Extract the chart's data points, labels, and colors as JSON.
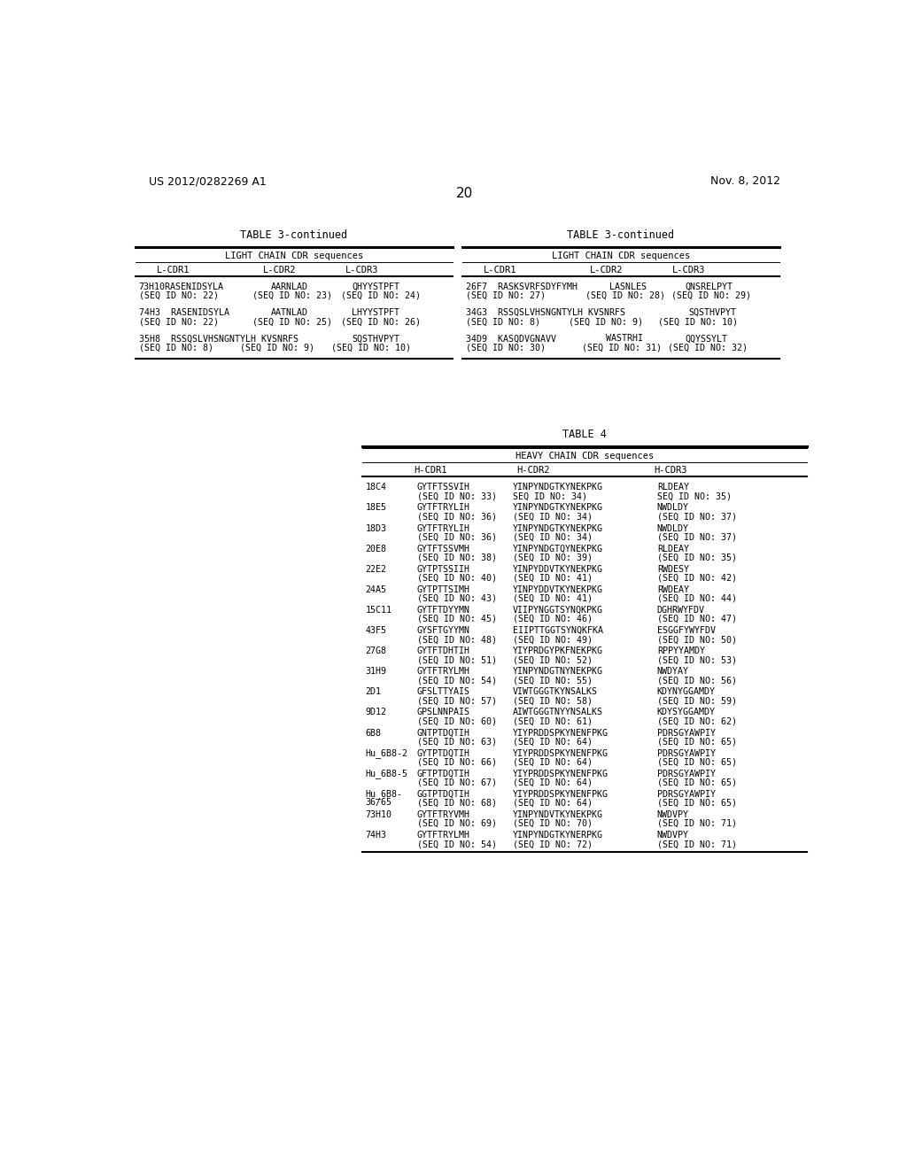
{
  "header_left": "US 2012/0282269 A1",
  "header_right": "Nov. 8, 2012",
  "page_number": "20",
  "background_color": "#ffffff",
  "table3_title": "TABLE 3-continued",
  "table3_subtitle": "LIGHT CHAIN CDR sequences",
  "table3_col_headers": [
    "L-CDR1",
    "L-CDR2",
    "L-CDR3"
  ],
  "table3_left_rows": [
    {
      "label": "73H10",
      "line1": "73H10RASENIDSYLA     AARNLAD         QHYYSTPFT",
      "line2": "      (SEQ ID NO: 22)  (SEQ ID NO: 23)(SEQ ID NO: 24)"
    },
    {
      "label": "74H3",
      "line1": "74H3  RASENIDSYLA     AATNLAD         LHYYSTPFT",
      "line2": "      (SEQ ID NO: 22)  (SEQ ID NO: 25)(SEQ ID NO: 26)"
    },
    {
      "label": "35H8",
      "line1": "35H8  RSSQSLVHSNGNTYLH KVSNRFS         SQSTHVPYT",
      "line2": "      (SEQ ID NO: 8)   (SEQ ID NO: 9) (SEQ ID NO: 10)"
    }
  ],
  "table3_right_rows": [
    {
      "label": "26F7",
      "line1": "26F7  RASKSVRFSDYFYMH  LASNLES         QNSRELPYT",
      "line2": "      (SEQ ID NO: 27)  (SEQ ID NO: 28)(SEQ ID NO: 29)"
    },
    {
      "label": "34G3",
      "line1": "34G3  RSSQSLVHSNGNTYLH KVSNRFS         SQSTHVPYT",
      "line2": "      (SEQ ID NO: 8)   (SEQ ID NO: 9) (SEQ ID NO: 10)"
    },
    {
      "label": "34D9",
      "line1": "34D9  KASQDVGNAVV      WASTRHI         QQYSSYLT",
      "line2": "      (SEQ ID NO: 30)  (SEQ ID NO: 31)(SEQ ID NO: 32)"
    }
  ],
  "table4_title": "TABLE 4",
  "table4_subtitle": "HEAVY CHAIN CDR sequences",
  "table4_col_headers": [
    "H-CDR1",
    "H-CDR2",
    "H-CDR3"
  ],
  "table4_rows": [
    {
      "label": "18C4",
      "cdr1": "GYTFTSSVIH",
      "cdr2": "YINPYNDGTKYNEKPKG",
      "cdr3": "RLDEAY",
      "seq1": "(SEQ ID NO: 33)",
      "seq2": "SEQ ID NO: 34)",
      "seq3": "SEQ ID NO: 35)"
    },
    {
      "label": "18E5",
      "cdr1": "GYTFTRYLIH",
      "cdr2": "YINPYNDGTKYNEKPKG",
      "cdr3": "NWDLDY",
      "seq1": "(SEQ ID NO: 36)",
      "seq2": "(SEQ ID NO: 34)",
      "seq3": "(SEQ ID NO: 37)"
    },
    {
      "label": "18D3",
      "cdr1": "GYTFTRYLIH",
      "cdr2": "YINPYNDGTKYNEKPKG",
      "cdr3": "NWDLDY",
      "seq1": "(SEQ ID NO: 36)",
      "seq2": "(SEQ ID NO: 34)",
      "seq3": "(SEQ ID NO: 37)"
    },
    {
      "label": "20E8",
      "cdr1": "GYTFTSSVMH",
      "cdr2": "YINPYNDGTQYNEKPKG",
      "cdr3": "RLDEAY",
      "seq1": "(SEQ ID NO: 38)",
      "seq2": "(SEQ ID NO: 39)",
      "seq3": "(SEQ ID NO: 35)"
    },
    {
      "label": "22E2",
      "cdr1": "GYTPTSSIIH",
      "cdr2": "YINPYDDVTKYNEKPKG",
      "cdr3": "RWDESY",
      "seq1": "(SEQ ID NO: 40)",
      "seq2": "(SEQ ID NO: 41)",
      "seq3": "(SEQ ID NO: 42)"
    },
    {
      "label": "24A5",
      "cdr1": "GYTPTTSIMH",
      "cdr2": "YINPYDDVTKYNEKPKG",
      "cdr3": "RWDEAY",
      "seq1": "(SEQ ID NO: 43)",
      "seq2": "(SEQ ID NO: 41)",
      "seq3": "(SEQ ID NO: 44)"
    },
    {
      "label": "15C11",
      "cdr1": "GYTFTDYYMN",
      "cdr2": "VIIPYNGGTSYNQKPKG",
      "cdr3": "DGHRWYFDV",
      "seq1": "(SEQ ID NO: 45)",
      "seq2": "(SEQ ID NO: 46)",
      "seq3": "(SEQ ID NO: 47)"
    },
    {
      "label": "43F5",
      "cdr1": "GYSFTGYYMN",
      "cdr2": "EIIPTTGGTSYNQKFKA",
      "cdr3": "ESGGFYWYFDV",
      "seq1": "(SEQ ID NO: 48)",
      "seq2": "(SEQ ID NO: 49)",
      "seq3": "(SEQ ID NO: 50)"
    },
    {
      "label": "27G8",
      "cdr1": "GYTFTDHTIH",
      "cdr2": "YIYPRDGYPKFNEKPKG",
      "cdr3": "RPPYYAMDY",
      "seq1": "(SEQ ID NO: 51)",
      "seq2": "(SEQ ID NO: 52)",
      "seq3": "(SEQ ID NO: 53)"
    },
    {
      "label": "31H9",
      "cdr1": "GYTFTRYLMH",
      "cdr2": "YINPYNDGTNYNEKPKG",
      "cdr3": "NWDYAY",
      "seq1": "(SEQ ID NO: 54)",
      "seq2": "(SEQ ID NO: 55)",
      "seq3": "(SEQ ID NO: 56)"
    },
    {
      "label": "2D1",
      "cdr1": "GFSLTTYAIS",
      "cdr2": "VIWTGGGTKYNSALKS",
      "cdr3": "KDYNYGGAMDY",
      "seq1": "(SEQ ID NO: 57)",
      "seq2": "(SEQ ID NO: 58)",
      "seq3": "(SEQ ID NO: 59)"
    },
    {
      "label": "9D12",
      "cdr1": "GPSLNNPAIS",
      "cdr2": "AIWTGGGTNYYNSALKS",
      "cdr3": "KDYSYGGAMDY",
      "seq1": "(SEQ ID NO: 60)",
      "seq2": "(SEQ ID NO: 61)",
      "seq3": "(SEQ ID NO: 62)"
    },
    {
      "label": "6B8",
      "cdr1": "GNTPTDQTIH",
      "cdr2": "YIYPRDDSPKYNENFPKG",
      "cdr3": "PDRSGYAWPIY",
      "seq1": "(SEQ ID NO: 63)",
      "seq2": "(SEQ ID NO: 64)",
      "seq3": "(SEQ ID NO: 65)"
    },
    {
      "label": "Hu_6B8-2",
      "cdr1": "GYTPTDQTIH",
      "cdr2": "YIYPRDDSPKYNENFPKG",
      "cdr3": "PDRSGYAWPIY",
      "seq1": "(SEQ ID NO: 66)",
      "seq2": "(SEQ ID NO: 64)",
      "seq3": "(SEQ ID NO: 65)"
    },
    {
      "label": "Hu_6B8-5",
      "cdr1": "GFTPTDQTIH",
      "cdr2": "YIYPRDDSPKYNENFPKG",
      "cdr3": "PDRSGYAWPIY",
      "seq1": "(SEQ ID NO: 67)",
      "seq2": "(SEQ ID NO: 64)",
      "seq3": "(SEQ ID NO: 65)"
    },
    {
      "label": "Hu_6B8-\n36/65",
      "label2": "36/65",
      "cdr1": "GGTPTDQTIH",
      "cdr2": "YIYPRDDSPKYNENFPKG",
      "cdr3": "PDRSGYAWPIY",
      "seq1": "(SEQ ID NO: 68)",
      "seq2": "(SEQ ID NO: 64)",
      "seq3": "(SEQ ID NO: 65)"
    },
    {
      "label": "73H10",
      "label2": "",
      "cdr1": "GYTFTRYVMH",
      "cdr2": "YINPYNDVTKYNEKPKG",
      "cdr3": "NWDVPY",
      "seq1": "(SEQ ID NO: 69)",
      "seq2": "(SEQ ID NO: 70)",
      "seq3": "(SEQ ID NO: 71)"
    },
    {
      "label": "74H3",
      "label2": "",
      "cdr1": "GYTFTRYLMH",
      "cdr2": "YINPYNDGTKYNERPKG",
      "cdr3": "NWDVPY",
      "seq1": "(SEQ ID NO: 54)",
      "seq2": "(SEQ ID NO: 72)",
      "seq3": "(SEQ ID NO: 71)"
    }
  ]
}
